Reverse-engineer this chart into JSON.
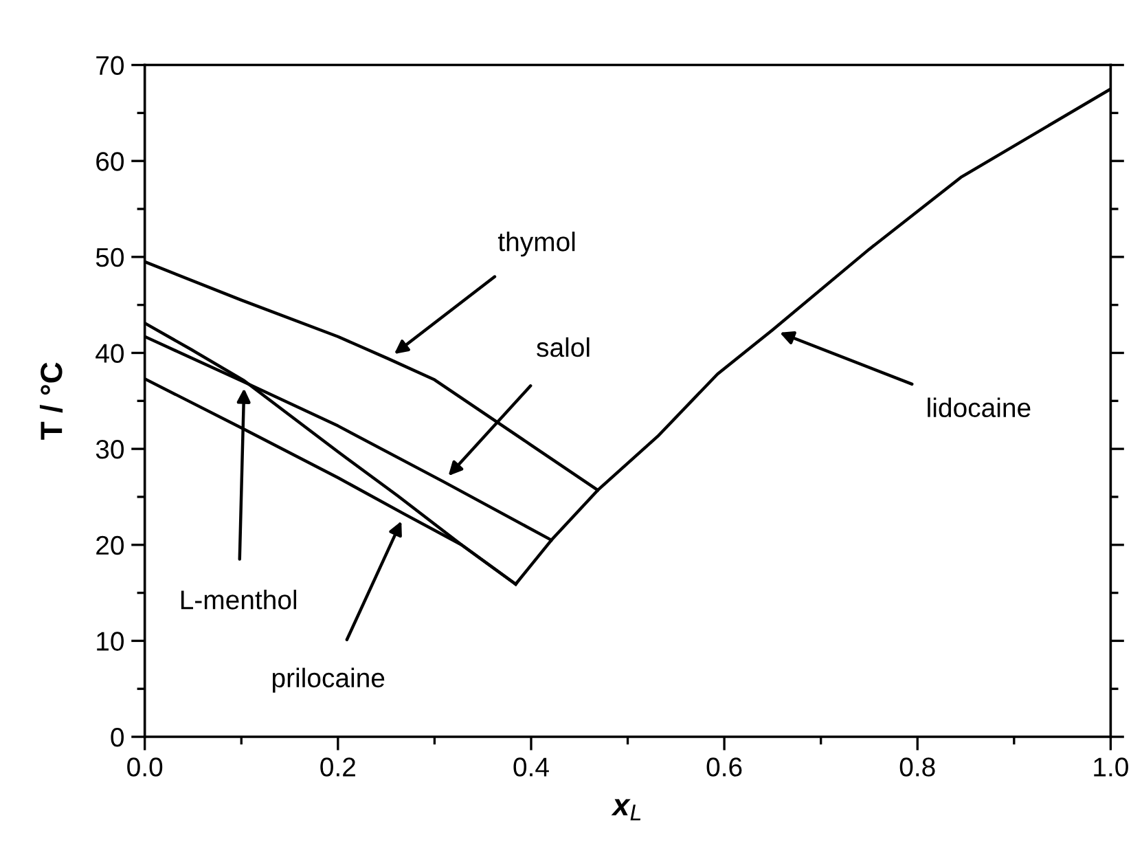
{
  "chart_data": {
    "type": "line",
    "xlabel": "x$_{L}$",
    "ylabel": "T / °C",
    "xlim": [
      0,
      1
    ],
    "ylim": [
      0,
      70
    ],
    "xticks": [
      {
        "value": 0,
        "label": "0.0"
      },
      0.2,
      0.4,
      0.6,
      0.8,
      {
        "value": 1,
        "label": "1.0"
      }
    ],
    "yticks": [
      0,
      10,
      20,
      30,
      40,
      50,
      60,
      70
    ],
    "grid": false,
    "legend": false,
    "marker": "none",
    "line_style": "solid",
    "series": [
      {
        "color": "#000000",
        "x": [
          0,
          0.1,
          0.2,
          0.252,
          0.3,
          0.4,
          0.469
        ],
        "values": [
          49.5,
          45.5,
          41.7,
          39.4,
          37.2,
          30.4,
          25.7
        ]
      },
      {
        "color": "#000000",
        "x": [
          0,
          0.1,
          0.2,
          0.309,
          0.421
        ],
        "values": [
          41.7,
          37.1,
          32.4,
          26.6,
          20.5
        ]
      },
      {
        "color": "#000000",
        "x": [
          0,
          0.049,
          0.103,
          0.2,
          0.262,
          0.328,
          0.384
        ],
        "values": [
          43.1,
          40.3,
          37.1,
          29.7,
          25.1,
          20.0,
          15.9
        ]
      },
      {
        "color": "#000000",
        "x": [
          0,
          0.1,
          0.2,
          0.269,
          0.328,
          0.384
        ],
        "values": [
          37.3,
          32.2,
          27.0,
          23.2,
          20.0,
          15.9
        ]
      },
      {
        "color": "#000000",
        "x": [
          0.384,
          0.421,
          0.469,
          0.531,
          0.593,
          0.65,
          0.75,
          0.845,
          1.0
        ],
        "values": [
          15.9,
          20.5,
          25.7,
          31.3,
          37.8,
          42.4,
          50.8,
          58.3,
          67.5
        ]
      }
    ],
    "annotations": [
      {
        "text": "thymol",
        "x": 0.252,
        "y": 39.4
      },
      {
        "text": "salol",
        "x": 0.309,
        "y": 26.6
      },
      {
        "text": "L-menthol",
        "x": 0.103,
        "y": 37.1
      },
      {
        "text": "prilocaine",
        "x": 0.269,
        "y": 23.2
      },
      {
        "text": "lidocaine",
        "x": 0.65,
        "y": 42.4
      }
    ]
  }
}
